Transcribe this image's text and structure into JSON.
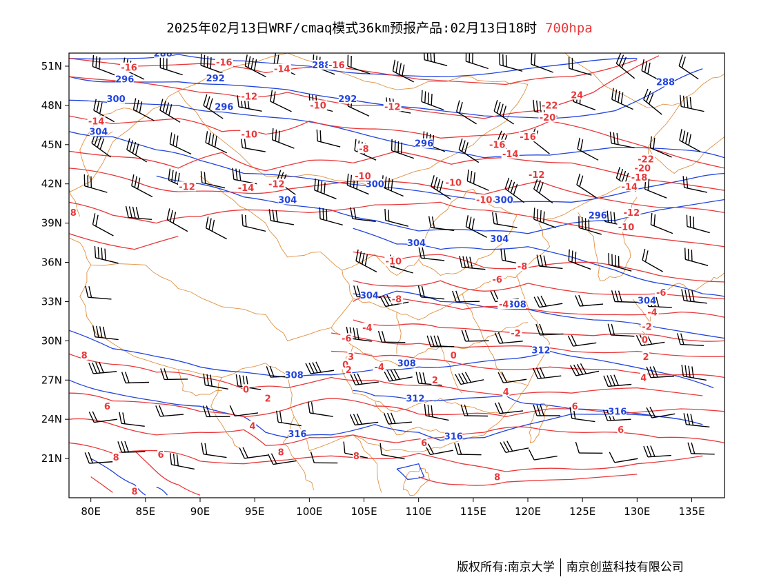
{
  "header": {
    "title_main": "2025年02月13日WRF/cmaq模式36km预报产品:02月13日18时",
    "title_level": "700hpa"
  },
  "colors": {
    "temperature_contour": "#e8383a",
    "height_contour": "#2244dd",
    "boundary": "#e09040",
    "wind_barb": "#000000",
    "level_text": "#e8383a"
  },
  "axes": {
    "lat_labels": [
      "51N",
      "48N",
      "45N",
      "42N",
      "39N",
      "36N",
      "33N",
      "30N",
      "27N",
      "24N",
      "21N"
    ],
    "lat_values": [
      51,
      48,
      45,
      42,
      39,
      36,
      33,
      30,
      27,
      24,
      21
    ],
    "lon_labels": [
      "80E",
      "85E",
      "90E",
      "95E",
      "100E",
      "105E",
      "110E",
      "115E",
      "120E",
      "125E",
      "130E",
      "135E"
    ],
    "lon_values": [
      80,
      85,
      90,
      95,
      100,
      105,
      110,
      115,
      120,
      125,
      130,
      135
    ],
    "lon_range": [
      78,
      138
    ],
    "lat_range": [
      18,
      52
    ]
  },
  "temperature_labels": [
    {
      "text": "-16",
      "lon": 83.5,
      "lat": 50.7
    },
    {
      "text": "-16",
      "lon": 92.2,
      "lat": 51.1
    },
    {
      "text": "-14",
      "lon": 97.5,
      "lat": 50.6
    },
    {
      "text": "-16",
      "lon": 102.5,
      "lat": 50.9
    },
    {
      "text": "-12",
      "lon": 94.5,
      "lat": 48.5
    },
    {
      "text": "-10",
      "lon": 100.8,
      "lat": 47.8
    },
    {
      "text": "-12",
      "lon": 107.6,
      "lat": 47.7
    },
    {
      "text": "-14",
      "lon": 80.5,
      "lat": 46.6
    },
    {
      "text": "-10",
      "lon": 94.5,
      "lat": 45.6
    },
    {
      "text": "-8",
      "lon": 105.0,
      "lat": 44.5
    },
    {
      "text": "-12",
      "lon": 97.0,
      "lat": 41.8
    },
    {
      "text": "-12",
      "lon": 88.8,
      "lat": 41.6
    },
    {
      "text": "-14",
      "lon": 94.2,
      "lat": 41.5
    },
    {
      "text": "-10",
      "lon": 104.9,
      "lat": 42.4
    },
    {
      "text": "-10",
      "lon": 113.2,
      "lat": 41.9
    },
    {
      "text": "-10",
      "lon": 116.0,
      "lat": 40.6
    },
    {
      "text": "-12",
      "lon": 120.8,
      "lat": 42.5
    },
    {
      "text": "-16",
      "lon": 117.2,
      "lat": 44.8
    },
    {
      "text": "-14",
      "lon": 118.4,
      "lat": 44.1
    },
    {
      "text": "-16",
      "lon": 120.0,
      "lat": 45.4
    },
    {
      "text": "-20",
      "lon": 121.8,
      "lat": 46.9
    },
    {
      "text": "-22",
      "lon": 122.0,
      "lat": 47.8
    },
    {
      "text": "24",
      "lon": 124.5,
      "lat": 48.6
    },
    {
      "text": "-22",
      "lon": 130.8,
      "lat": 43.7
    },
    {
      "text": "-20",
      "lon": 130.5,
      "lat": 43.0
    },
    {
      "text": "-18",
      "lon": 130.2,
      "lat": 42.3
    },
    {
      "text": "-14",
      "lon": 129.3,
      "lat": 41.6
    },
    {
      "text": "-12",
      "lon": 129.5,
      "lat": 39.6
    },
    {
      "text": "-10",
      "lon": 129.0,
      "lat": 38.5
    },
    {
      "text": "8",
      "lon": 78.4,
      "lat": 39.6
    },
    {
      "text": "-10",
      "lon": 107.7,
      "lat": 35.9
    },
    {
      "text": "-8",
      "lon": 119.5,
      "lat": 35.5
    },
    {
      "text": "-6",
      "lon": 117.2,
      "lat": 34.5
    },
    {
      "text": "-8",
      "lon": 108.0,
      "lat": 33.0
    },
    {
      "text": "-4",
      "lon": 117.8,
      "lat": 32.6
    },
    {
      "text": "-4",
      "lon": 131.4,
      "lat": 32.0
    },
    {
      "text": "-6",
      "lon": 132.2,
      "lat": 33.5
    },
    {
      "text": "-2",
      "lon": 130.9,
      "lat": 30.9
    },
    {
      "text": "0",
      "lon": 130.7,
      "lat": 29.9
    },
    {
      "text": "2",
      "lon": 130.8,
      "lat": 28.6
    },
    {
      "text": "-4",
      "lon": 105.3,
      "lat": 30.8
    },
    {
      "text": "-6",
      "lon": 103.4,
      "lat": 30.0
    },
    {
      "text": "-2",
      "lon": 118.9,
      "lat": 30.4
    },
    {
      "text": "0",
      "lon": 113.2,
      "lat": 28.7
    },
    {
      "text": "3",
      "lon": 103.8,
      "lat": 28.6
    },
    {
      "text": "0",
      "lon": 103.3,
      "lat": 28.0
    },
    {
      "text": "2",
      "lon": 103.6,
      "lat": 27.6
    },
    {
      "text": "-4",
      "lon": 106.4,
      "lat": 27.8
    },
    {
      "text": "2",
      "lon": 111.5,
      "lat": 26.8
    },
    {
      "text": "4",
      "lon": 118.0,
      "lat": 25.9
    },
    {
      "text": "4",
      "lon": 130.6,
      "lat": 27.0
    },
    {
      "text": "8",
      "lon": 79.4,
      "lat": 28.7
    },
    {
      "text": "0",
      "lon": 94.2,
      "lat": 26.1
    },
    {
      "text": "2",
      "lon": 96.2,
      "lat": 25.4
    },
    {
      "text": "6",
      "lon": 81.5,
      "lat": 24.8
    },
    {
      "text": "4",
      "lon": 94.8,
      "lat": 23.3
    },
    {
      "text": "6",
      "lon": 124.3,
      "lat": 24.8
    },
    {
      "text": "6",
      "lon": 128.5,
      "lat": 23.0
    },
    {
      "text": "8",
      "lon": 97.4,
      "lat": 21.3
    },
    {
      "text": "8",
      "lon": 104.3,
      "lat": 21.0
    },
    {
      "text": "6",
      "lon": 110.5,
      "lat": 22.0
    },
    {
      "text": "8",
      "lon": 82.3,
      "lat": 20.9
    },
    {
      "text": "6",
      "lon": 86.4,
      "lat": 21.1
    },
    {
      "text": "8",
      "lon": 117.2,
      "lat": 19.4
    },
    {
      "text": "8",
      "lon": 84.0,
      "lat": 18.3
    }
  ],
  "height_labels": [
    {
      "text": "288",
      "lon": 86.6,
      "lat": 51.8
    },
    {
      "text": "296",
      "lon": 83.1,
      "lat": 49.8
    },
    {
      "text": "292",
      "lon": 91.4,
      "lat": 49.9
    },
    {
      "text": "288",
      "lon": 101.1,
      "lat": 50.9
    },
    {
      "text": "300",
      "lon": 82.3,
      "lat": 48.3
    },
    {
      "text": "296",
      "lon": 92.2,
      "lat": 47.7
    },
    {
      "text": "292",
      "lon": 103.5,
      "lat": 48.3
    },
    {
      "text": "304",
      "lon": 80.7,
      "lat": 45.8
    },
    {
      "text": "296",
      "lon": 110.5,
      "lat": 44.9
    },
    {
      "text": "300",
      "lon": 106.0,
      "lat": 41.8
    },
    {
      "text": "304",
      "lon": 98.0,
      "lat": 40.6
    },
    {
      "text": "300",
      "lon": 117.8,
      "lat": 40.6
    },
    {
      "text": "288",
      "lon": 132.6,
      "lat": 49.6
    },
    {
      "text": "296",
      "lon": 126.4,
      "lat": 39.4
    },
    {
      "text": "304",
      "lon": 109.8,
      "lat": 37.3
    },
    {
      "text": "304",
      "lon": 117.4,
      "lat": 37.6
    },
    {
      "text": "304",
      "lon": 105.5,
      "lat": 33.3
    },
    {
      "text": "308",
      "lon": 119.0,
      "lat": 32.6
    },
    {
      "text": "304",
      "lon": 130.9,
      "lat": 32.9
    },
    {
      "text": "312",
      "lon": 121.2,
      "lat": 29.1
    },
    {
      "text": "308",
      "lon": 98.6,
      "lat": 27.2
    },
    {
      "text": "308",
      "lon": 108.9,
      "lat": 28.1
    },
    {
      "text": "312",
      "lon": 109.7,
      "lat": 25.4
    },
    {
      "text": "316",
      "lon": 98.9,
      "lat": 22.7
    },
    {
      "text": "316",
      "lon": 113.2,
      "lat": 22.5
    },
    {
      "text": "316",
      "lon": 128.2,
      "lat": 24.4
    }
  ],
  "footer": {
    "left": "版权所有:南京大学",
    "right": "南京创蓝科技有限公司"
  }
}
